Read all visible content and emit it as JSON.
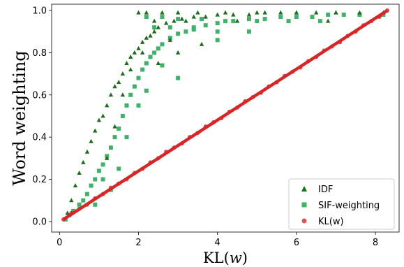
{
  "chart_data": {
    "type": "scatter",
    "xlabel_prefix": "KL(",
    "xlabel_var": "w",
    "xlabel_suffix": ")",
    "ylabel": "Word weighting",
    "xlim": [
      -0.2,
      8.6
    ],
    "ylim": [
      -0.05,
      1.03
    ],
    "x_ticks": [
      0,
      2,
      4,
      6,
      8
    ],
    "y_ticks": [
      0.0,
      0.2,
      0.4,
      0.6,
      0.8,
      1.0
    ],
    "x_tick_labels": [
      "0",
      "2",
      "4",
      "6",
      "8"
    ],
    "y_tick_labels": [
      "0.0",
      "0.2",
      "0.4",
      "0.6",
      "0.8",
      "1.0"
    ],
    "legend_position": "bottom-right",
    "series": [
      {
        "name": "IDF",
        "marker": "triangle",
        "color": "#1f6b1f",
        "x": [
          0.2,
          0.3,
          0.4,
          0.5,
          0.6,
          0.7,
          0.8,
          0.9,
          1.0,
          1.1,
          1.2,
          1.3,
          1.4,
          1.5,
          1.6,
          1.7,
          1.8,
          1.9,
          2.0,
          2.0,
          2.1,
          2.2,
          2.3,
          2.4,
          2.5,
          2.7,
          2.9,
          3.1,
          3.4,
          3.7,
          4.0,
          4.4,
          4.8,
          5.2,
          5.6,
          6.0,
          6.5,
          7.0,
          7.6,
          8.2,
          2.2,
          2.6,
          3.0,
          3.5,
          4.2,
          5.0,
          6.0,
          7.0,
          2.4,
          3.2,
          4.5,
          6.8,
          1.6,
          1.8,
          2.1,
          2.5,
          3.0,
          2.8,
          3.6,
          1.2,
          1.4
        ],
        "y": [
          0.04,
          0.1,
          0.17,
          0.23,
          0.28,
          0.33,
          0.38,
          0.43,
          0.48,
          0.5,
          0.55,
          0.6,
          0.64,
          0.66,
          0.7,
          0.75,
          0.78,
          0.8,
          0.82,
          0.99,
          0.85,
          0.87,
          0.88,
          0.9,
          0.92,
          0.94,
          0.95,
          0.96,
          0.97,
          0.97,
          0.98,
          0.98,
          0.98,
          0.99,
          0.99,
          0.99,
          0.99,
          0.99,
          0.99,
          0.99,
          0.99,
          0.99,
          0.99,
          0.99,
          0.99,
          0.99,
          0.99,
          0.99,
          0.95,
          0.95,
          0.95,
          0.95,
          0.6,
          0.72,
          0.8,
          0.75,
          0.8,
          0.86,
          0.84,
          0.3,
          0.45
        ]
      },
      {
        "name": "SIF-weighting",
        "marker": "square",
        "color": "#41b06a",
        "x": [
          0.15,
          0.25,
          0.35,
          0.5,
          0.6,
          0.7,
          0.8,
          0.9,
          1.0,
          1.1,
          1.2,
          1.3,
          1.4,
          1.5,
          1.6,
          1.7,
          1.8,
          1.9,
          2.0,
          2.1,
          2.2,
          2.3,
          2.4,
          2.5,
          2.6,
          2.8,
          3.0,
          3.2,
          3.4,
          3.7,
          4.0,
          4.4,
          4.8,
          5.2,
          5.6,
          6.0,
          6.4,
          6.8,
          7.2,
          7.6,
          8.2,
          2.2,
          2.6,
          3.0,
          3.6,
          4.2,
          5.0,
          5.8,
          6.6,
          2.4,
          2.8,
          3.4,
          4.0,
          4.8,
          1.3,
          1.5,
          1.7,
          2.0,
          2.2,
          1.1,
          0.9,
          2.6,
          3.0,
          4.0
        ],
        "y": [
          0.01,
          0.03,
          0.05,
          0.08,
          0.1,
          0.13,
          0.17,
          0.2,
          0.24,
          0.27,
          0.31,
          0.35,
          0.4,
          0.44,
          0.5,
          0.55,
          0.6,
          0.64,
          0.68,
          0.72,
          0.75,
          0.78,
          0.8,
          0.82,
          0.84,
          0.87,
          0.89,
          0.9,
          0.92,
          0.93,
          0.94,
          0.95,
          0.96,
          0.96,
          0.97,
          0.97,
          0.97,
          0.98,
          0.98,
          0.98,
          0.98,
          0.97,
          0.97,
          0.96,
          0.96,
          0.95,
          0.95,
          0.95,
          0.95,
          0.92,
          0.92,
          0.91,
          0.9,
          0.9,
          0.15,
          0.25,
          0.4,
          0.55,
          0.62,
          0.2,
          0.08,
          0.74,
          0.68,
          0.86
        ]
      },
      {
        "name": "KL(w)",
        "marker": "circle",
        "color": "#d62728",
        "x": [
          0.1,
          0.3,
          0.5,
          0.7,
          0.9,
          1.1,
          1.3,
          1.5,
          1.7,
          1.9,
          2.1,
          2.3,
          2.5,
          2.7,
          2.9,
          3.1,
          3.3,
          3.5,
          3.7,
          3.9,
          4.1,
          4.3,
          4.5,
          4.7,
          4.9,
          5.1,
          5.3,
          5.5,
          5.7,
          5.9,
          6.1,
          6.3,
          6.5,
          6.7,
          6.9,
          7.1,
          7.3,
          7.5,
          7.7,
          7.9,
          8.1,
          8.3
        ],
        "y": [
          0.01,
          0.04,
          0.06,
          0.08,
          0.11,
          0.13,
          0.16,
          0.18,
          0.2,
          0.23,
          0.25,
          0.28,
          0.3,
          0.33,
          0.35,
          0.37,
          0.4,
          0.42,
          0.45,
          0.47,
          0.49,
          0.52,
          0.54,
          0.57,
          0.59,
          0.61,
          0.64,
          0.66,
          0.69,
          0.71,
          0.73,
          0.76,
          0.78,
          0.81,
          0.83,
          0.85,
          0.88,
          0.9,
          0.93,
          0.95,
          0.97,
          1.0
        ]
      }
    ]
  }
}
